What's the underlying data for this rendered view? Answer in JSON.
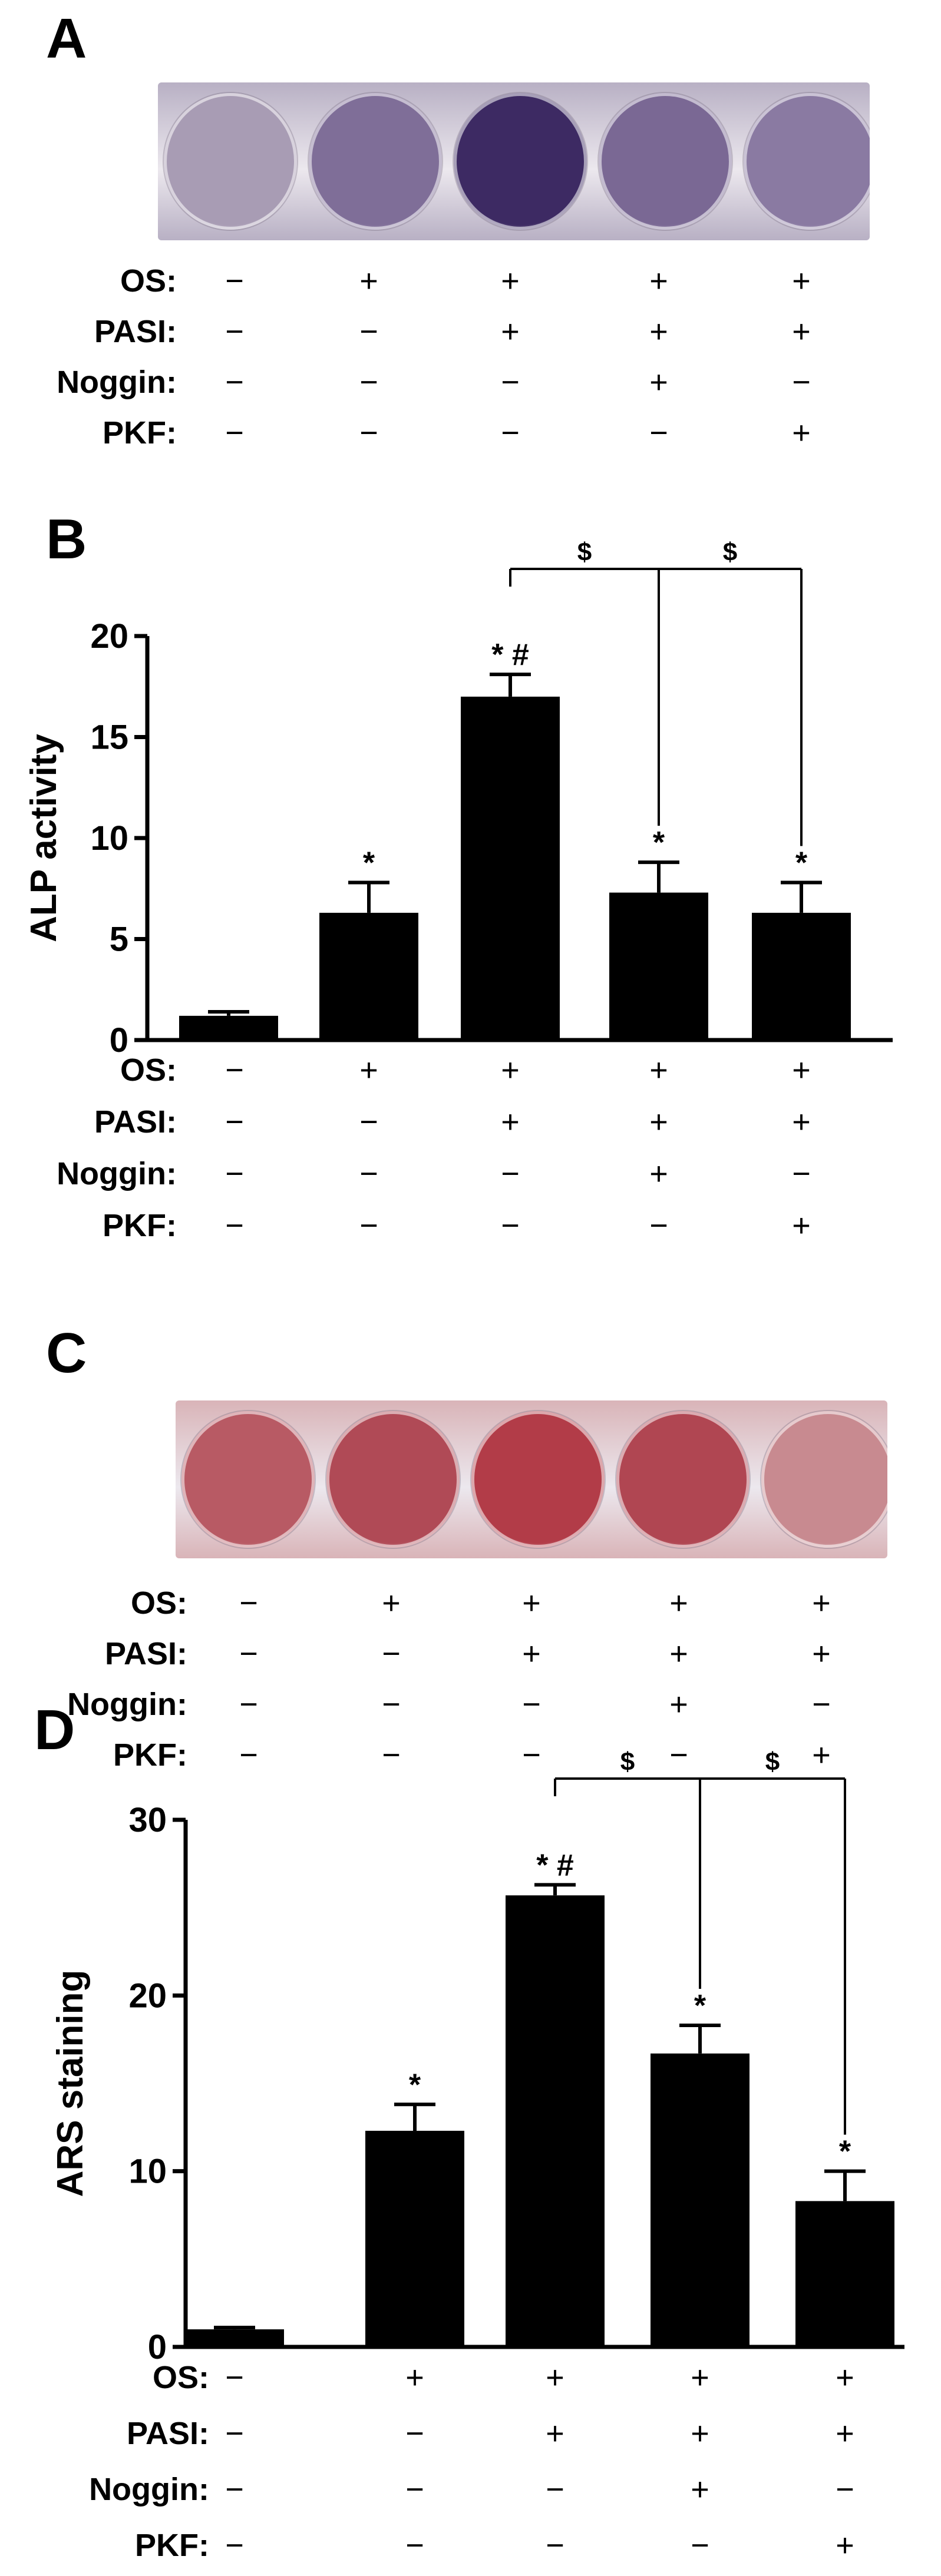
{
  "conditions": {
    "labels": [
      "OS:",
      "PASI:",
      "Noggin:",
      "PKF:"
    ],
    "signs": [
      [
        "−",
        "+",
        "+",
        "+",
        "+"
      ],
      [
        "−",
        "−",
        "+",
        "+",
        "+"
      ],
      [
        "−",
        "−",
        "−",
        "+",
        "−"
      ],
      [
        "−",
        "−",
        "−",
        "−",
        "+"
      ]
    ]
  },
  "panel_a": {
    "letter": "A",
    "well_colors": [
      "#a89cb4",
      "#7f6e98",
      "#3d2a63",
      "#7a6894",
      "#8a7aa2"
    ],
    "plate_color": "#b8b0c4"
  },
  "panel_c": {
    "letter": "C",
    "well_colors": [
      "#b85a64",
      "#b04a56",
      "#b23c48",
      "#b04652",
      "#c88a90"
    ],
    "plate_color": "#d9b4b8"
  },
  "chart_data": [
    {
      "panel": "B",
      "type": "bar",
      "ylabel": "ALP activity",
      "ylim": [
        0,
        20
      ],
      "yticks": [
        0,
        5,
        10,
        15,
        20
      ],
      "values": [
        1.2,
        6.3,
        17.0,
        7.3,
        6.3
      ],
      "errors": [
        0.2,
        1.5,
        1.1,
        1.5,
        1.5
      ],
      "bar_labels": [
        "",
        "*",
        "* #",
        "*",
        "*"
      ],
      "brackets": [
        {
          "from": 2,
          "to": 3,
          "label": "$"
        },
        {
          "from": 3,
          "to": 4,
          "label": "$"
        }
      ]
    },
    {
      "panel": "D",
      "type": "bar",
      "ylabel": "ARS staining",
      "ylim": [
        0,
        30
      ],
      "yticks": [
        0,
        10,
        20,
        30
      ],
      "values": [
        1.0,
        12.3,
        25.7,
        16.7,
        8.3
      ],
      "errors": [
        0.1,
        1.5,
        0.6,
        1.6,
        1.7
      ],
      "bar_labels": [
        "",
        "*",
        "* #",
        "*",
        "*"
      ],
      "brackets": [
        {
          "from": 2,
          "to": 3,
          "label": "$"
        },
        {
          "from": 3,
          "to": 4,
          "label": "$"
        }
      ]
    }
  ]
}
